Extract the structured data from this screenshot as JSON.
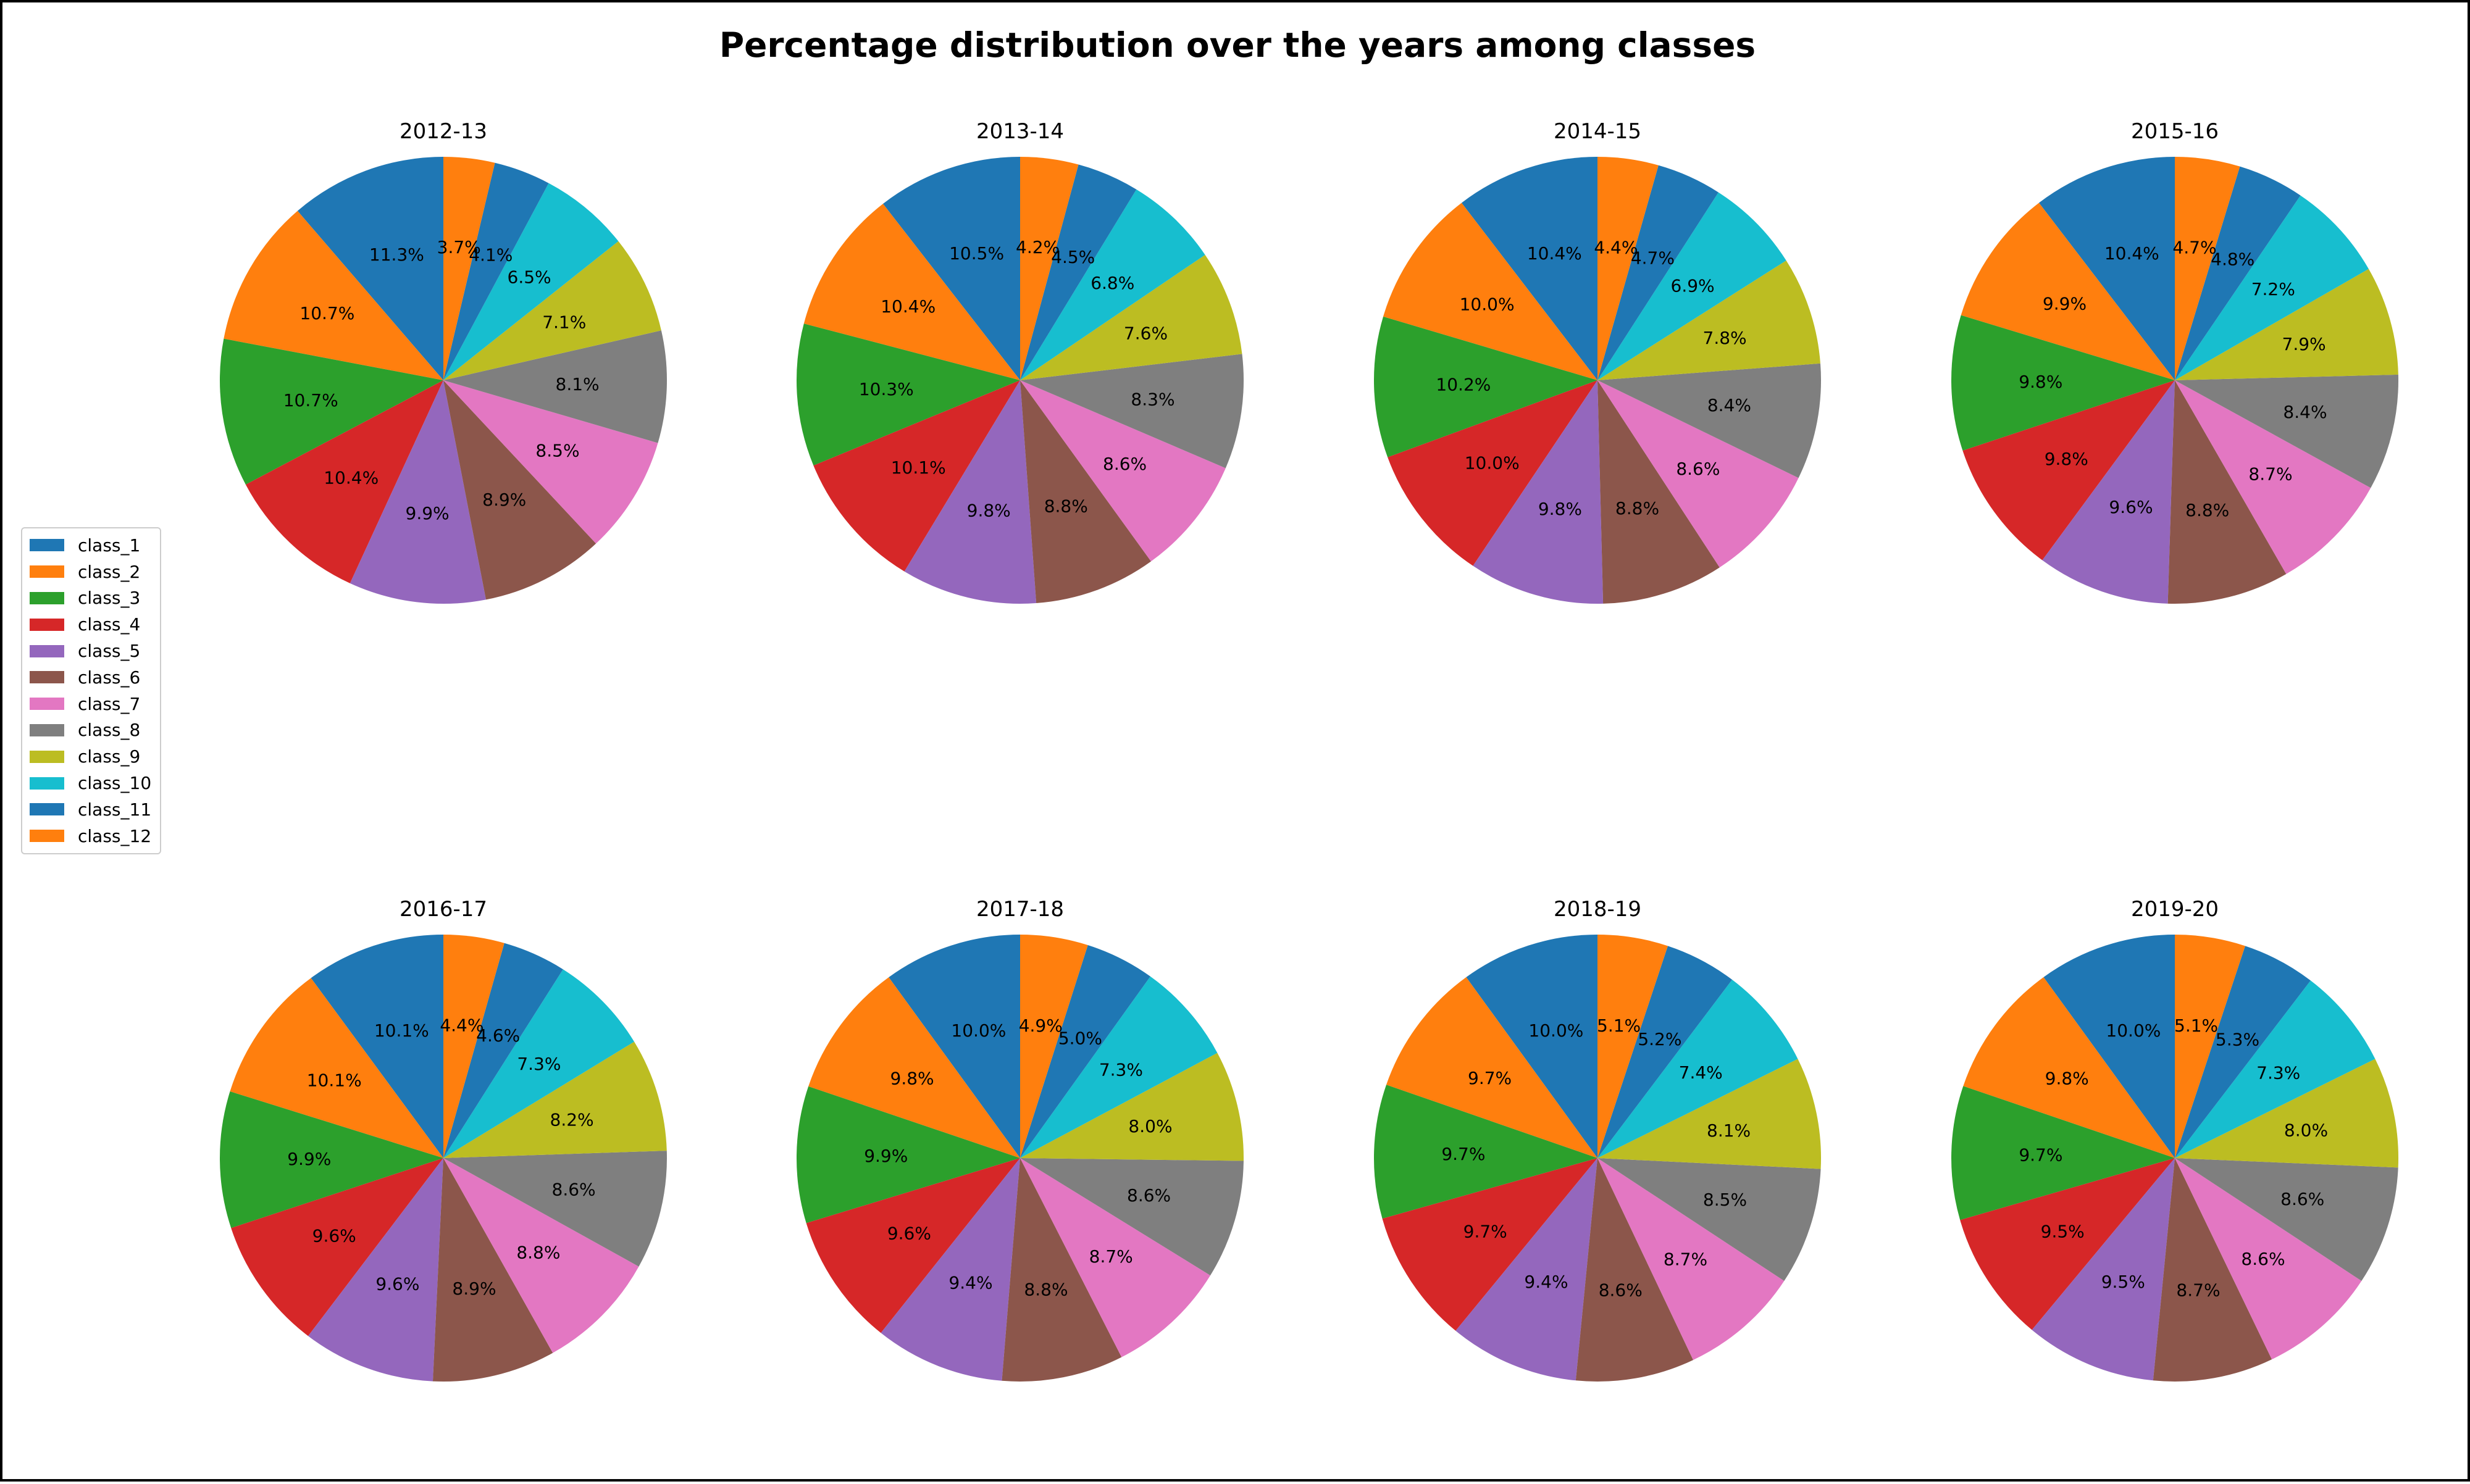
{
  "chart_data": {
    "type": "pie",
    "title": "Percentage distribution over the years among classes",
    "categories": [
      "class_1",
      "class_2",
      "class_3",
      "class_4",
      "class_5",
      "class_6",
      "class_7",
      "class_8",
      "class_9",
      "class_10",
      "class_11",
      "class_12"
    ],
    "colors": [
      "#1f77b4",
      "#ff7f0e",
      "#2ca02c",
      "#d62728",
      "#9467bd",
      "#8c564b",
      "#e377c2",
      "#7f7f7f",
      "#bcbd22",
      "#17becf",
      "#1f77b4",
      "#ff7f0e"
    ],
    "legend_position": "center-left",
    "start_angle_deg": 90,
    "direction": "counterclockwise",
    "pies": [
      {
        "title": "2012-13",
        "values": [
          11.3,
          10.7,
          10.7,
          10.4,
          9.9,
          8.9,
          8.5,
          8.1,
          7.1,
          6.5,
          4.1,
          3.7
        ]
      },
      {
        "title": "2013-14",
        "values": [
          10.5,
          10.4,
          10.3,
          10.1,
          9.8,
          8.8,
          8.6,
          8.3,
          7.6,
          6.8,
          4.5,
          4.2
        ]
      },
      {
        "title": "2014-15",
        "values": [
          10.4,
          10.0,
          10.2,
          10.0,
          9.8,
          8.8,
          8.6,
          8.4,
          7.8,
          6.9,
          4.7,
          4.4
        ]
      },
      {
        "title": "2015-16",
        "values": [
          10.4,
          9.9,
          9.8,
          9.8,
          9.6,
          8.8,
          8.7,
          8.4,
          7.9,
          7.2,
          4.8,
          4.7
        ]
      },
      {
        "title": "2016-17",
        "values": [
          10.1,
          10.1,
          9.9,
          9.6,
          9.6,
          8.9,
          8.8,
          8.6,
          8.2,
          7.3,
          4.6,
          4.4
        ]
      },
      {
        "title": "2017-18",
        "values": [
          10.0,
          9.8,
          9.9,
          9.6,
          9.4,
          8.8,
          8.7,
          8.6,
          8.0,
          7.3,
          5.0,
          4.9
        ]
      },
      {
        "title": "2018-19",
        "values": [
          10.0,
          9.7,
          9.7,
          9.7,
          9.4,
          8.6,
          8.7,
          8.5,
          8.1,
          7.4,
          5.2,
          5.1
        ]
      },
      {
        "title": "2019-20",
        "values": [
          10.0,
          9.8,
          9.7,
          9.5,
          9.5,
          8.7,
          8.6,
          8.6,
          8.0,
          7.3,
          5.3,
          5.1
        ]
      }
    ]
  }
}
